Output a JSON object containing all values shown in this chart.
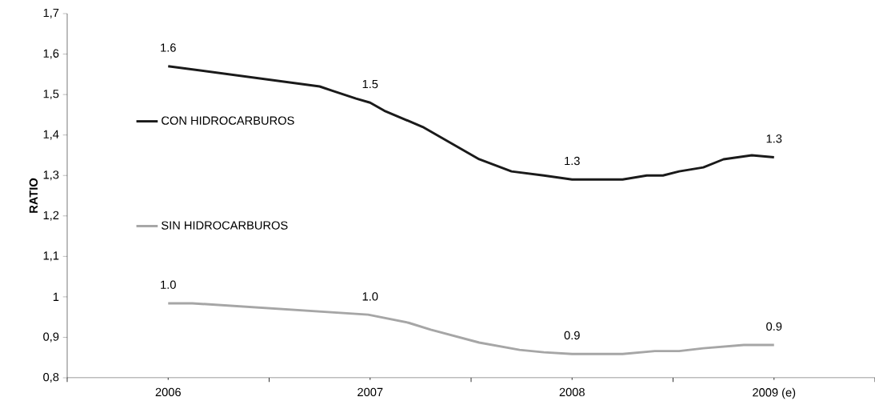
{
  "chart_data": {
    "type": "line",
    "ylabel": "RATIO",
    "legend": "left",
    "line_style": "solid",
    "marker": "none",
    "xlim": [
      2005.5,
      2009.5
    ],
    "xticks": [
      {
        "value": 2005.5,
        "label": null
      },
      2006,
      {
        "value": 2006.5,
        "label": null
      },
      2007,
      {
        "value": 2007.5,
        "label": null
      },
      2008,
      {
        "value": 2008.5,
        "label": null
      },
      {
        "value": 2009,
        "label": "2009 (e)"
      },
      {
        "value": 2009.5,
        "label": null
      }
    ],
    "ylim": [
      0.8,
      1.7
    ],
    "yticks": [
      {
        "value": 0.8,
        "label": "0,8"
      },
      {
        "value": 0.9,
        "label": "0,9"
      },
      {
        "value": 1,
        "label": "1"
      },
      {
        "value": 1.1,
        "label": "1,1"
      },
      {
        "value": 1.2,
        "label": "1,2"
      },
      {
        "value": 1.3,
        "label": "1,3"
      },
      {
        "value": 1.4,
        "label": "1,4"
      },
      {
        "value": 1.5,
        "label": "1,5"
      },
      {
        "value": 1.6,
        "label": "1,6"
      },
      {
        "value": 1.7,
        "label": "1,7"
      }
    ],
    "series": [
      {
        "name": "CON HIDROCARBUROS",
        "color": "#1a1a1a",
        "x": [
          2006,
          2006.75,
          2006.81,
          2006.93,
          2007,
          2007.07,
          2007.26,
          2007.4,
          2007.54,
          2007.7,
          2007.86,
          2008,
          2008.11,
          2008.25,
          2008.37,
          2008.45,
          2008.53,
          2008.65,
          2008.75,
          2008.89,
          2009
        ],
        "values": [
          1.57,
          1.52,
          1.51,
          1.49,
          1.48,
          1.46,
          1.42,
          1.38,
          1.34,
          1.31,
          1.3,
          1.29,
          1.29,
          1.29,
          1.3,
          1.3,
          1.31,
          1.32,
          1.34,
          1.35,
          1.345
        ],
        "value_labels": [
          "1.6",
          null,
          null,
          null,
          "1.5",
          null,
          null,
          null,
          null,
          null,
          null,
          "1.3",
          null,
          null,
          null,
          null,
          null,
          null,
          null,
          null,
          "1.3"
        ]
      },
      {
        "name": "SIN HIDROCARBUROS",
        "color": "#a6a6a6",
        "x": [
          2006,
          2006.12,
          2006.99,
          2007,
          2007.19,
          2007.3,
          2007.54,
          2007.74,
          2007.86,
          2008,
          2008.02,
          2008.25,
          2008.41,
          2008.53,
          2008.65,
          2008.85,
          2009
        ],
        "values": [
          0.984,
          0.984,
          0.956,
          0.955,
          0.936,
          0.919,
          0.887,
          0.869,
          0.863,
          0.859,
          0.859,
          0.859,
          0.866,
          0.866,
          0.873,
          0.881,
          0.881
        ],
        "value_labels": [
          "1.0",
          null,
          null,
          "1.0",
          null,
          null,
          null,
          null,
          null,
          "0.9",
          null,
          null,
          null,
          null,
          null,
          null,
          "0.9"
        ]
      }
    ]
  }
}
